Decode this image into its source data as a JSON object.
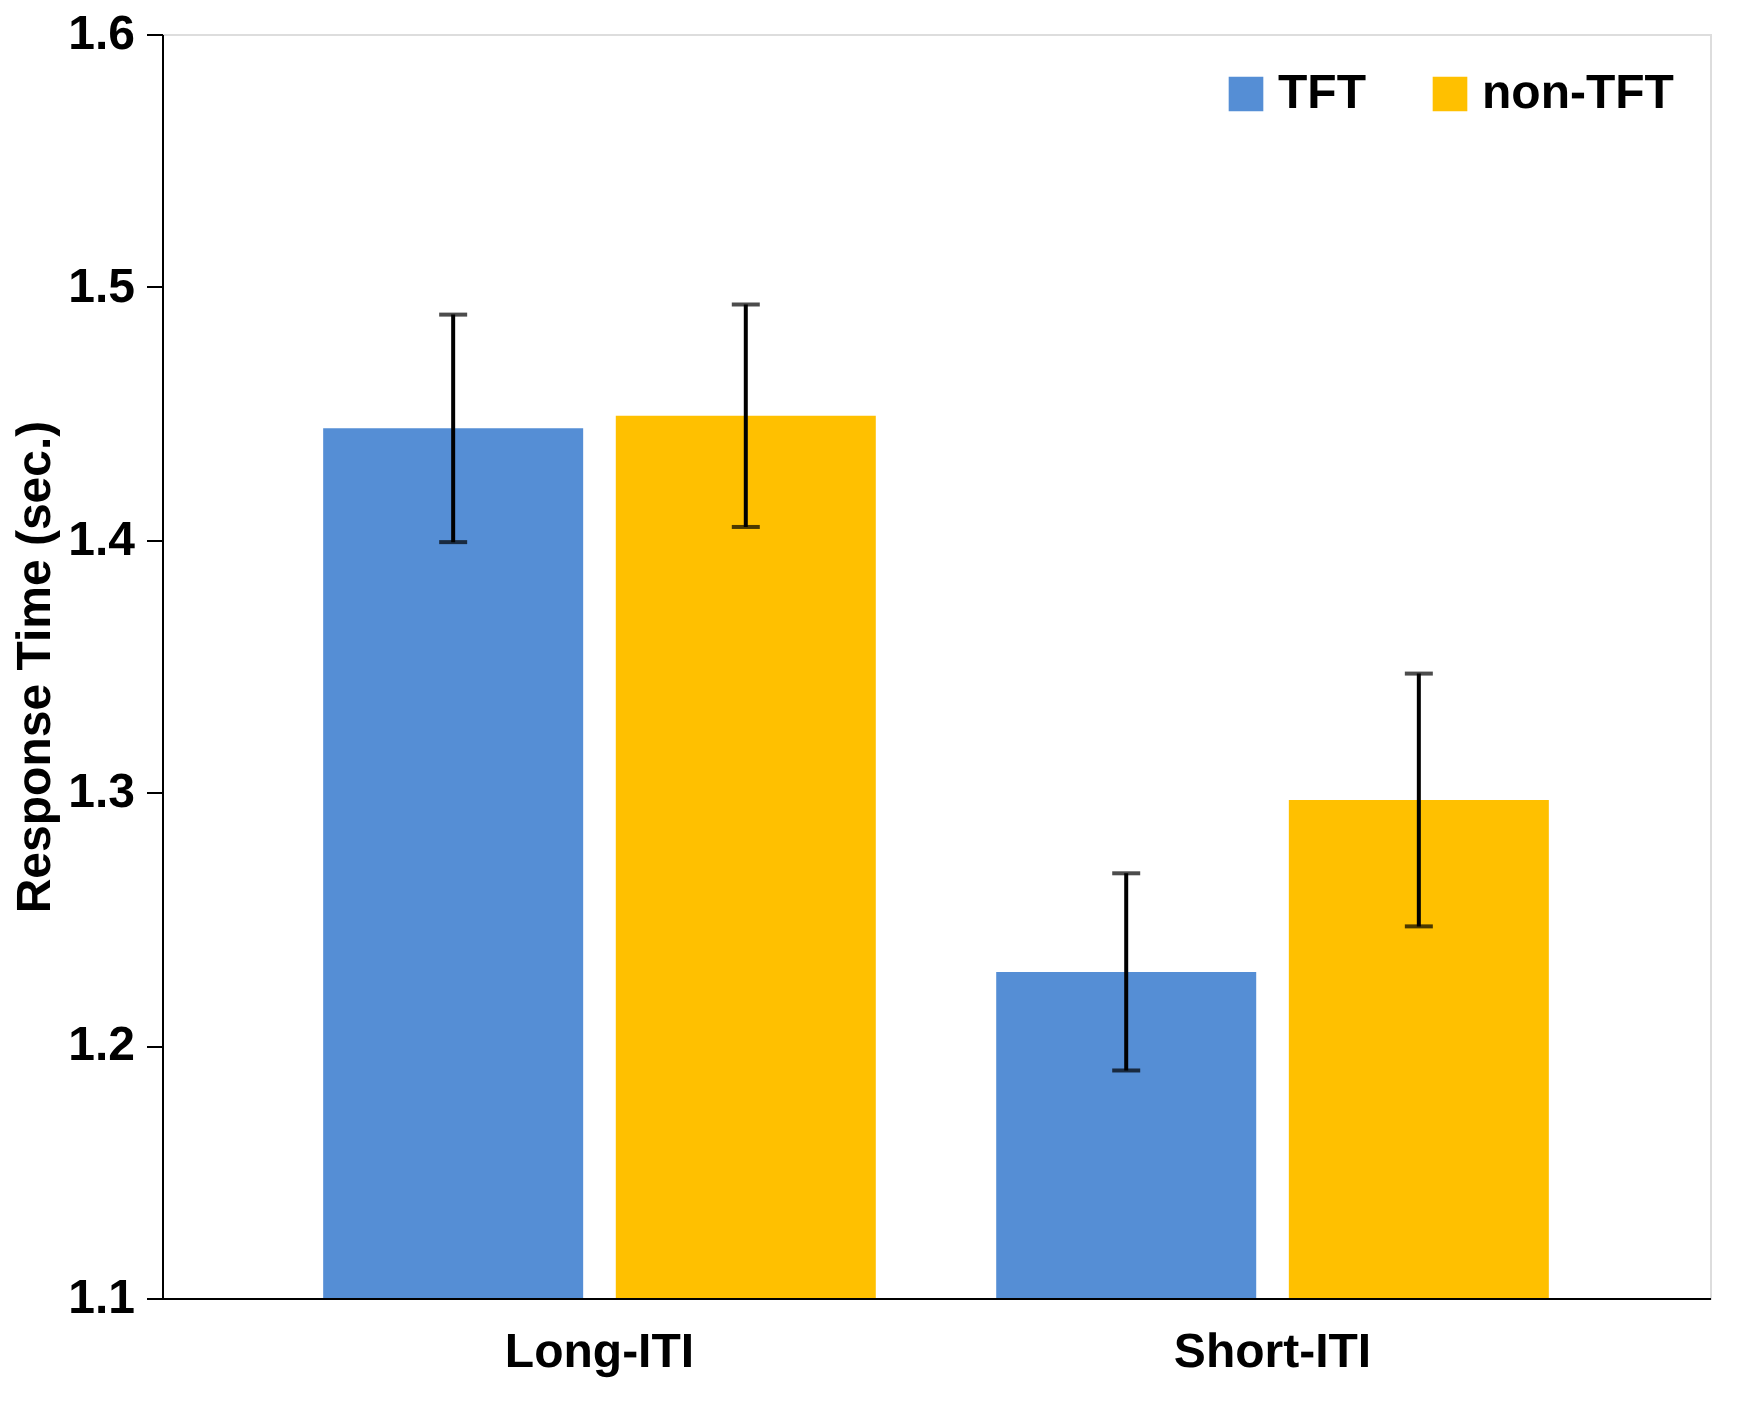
{
  "chart_data": {
    "type": "bar",
    "ylabel": "Response Time (sec.)",
    "categories": [
      "Long-ITI",
      "Short-ITI"
    ],
    "series": [
      {
        "name": "TFT",
        "color": "#558ed5",
        "values": [
          1.444,
          1.229
        ],
        "errors": [
          0.045,
          0.039
        ]
      },
      {
        "name": "non-TFT",
        "color": "#ffc000",
        "values": [
          1.449,
          1.297
        ],
        "errors": [
          0.044,
          0.05
        ]
      }
    ],
    "ylim": [
      1.1,
      1.6
    ],
    "yticks": [
      1.1,
      1.2,
      1.3,
      1.4,
      1.5,
      1.6
    ],
    "grid": false,
    "legend": "top right"
  }
}
